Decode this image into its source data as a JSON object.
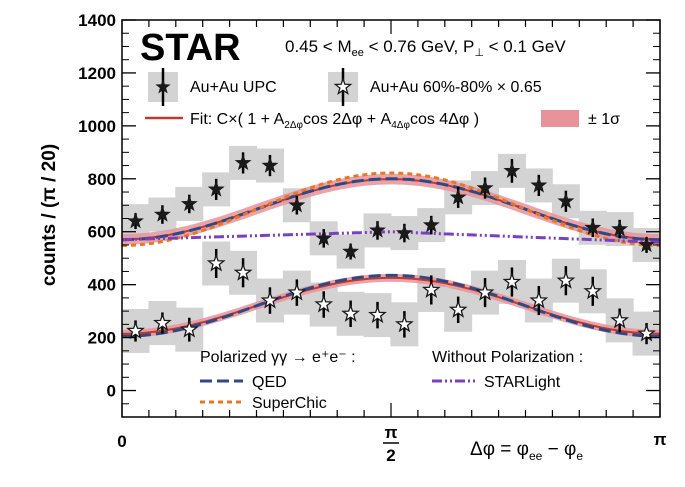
{
  "colors": {
    "star_fill": "#1a1a1a",
    "box_fill": "#d3d3d3",
    "fit_line": "#c0392b",
    "fit_band": "#e8939a",
    "qed": "#2e4a86",
    "superchic": "#e87722",
    "starlight": "#7b3fbf"
  },
  "chart_data": {
    "type": "scatter",
    "logo": "STAR",
    "condition_text": "0.45 < M_ee < 0.76 GeV, P_⊥ < 0.1 GeV",
    "ylabel": "counts  / (π / 20)",
    "xlabel": "Δφ = φ_ee − φ_e",
    "xlim": [
      0,
      3.14159
    ],
    "ylim": [
      -100,
      1400
    ],
    "yticks": [
      0,
      200,
      400,
      600,
      800,
      1000,
      1200,
      1400
    ],
    "xtick_labels": [
      "0",
      "π/2",
      "π"
    ],
    "legend": {
      "upc": "Au+Au UPC",
      "peripheral": "Au+Au 60%-80% × 0.65",
      "fit": "Fit: C×( 1 + A_2Δφ cos 2Δφ + A_4Δφ cos 4Δφ )",
      "band": "± 1σ",
      "group_pol": "Polarized γγ → e⁺e⁻ :",
      "group_nopol": "Without Polarization :",
      "qed": "QED",
      "superchic": "SuperChic",
      "starlight": "STARLight"
    },
    "series": [
      {
        "name": "Au+Au UPC",
        "x": [
          0.079,
          0.236,
          0.393,
          0.55,
          0.707,
          0.864,
          1.021,
          1.178,
          1.335,
          1.492,
          1.649,
          1.806,
          1.963,
          2.12,
          2.277,
          2.434,
          2.592,
          2.749,
          2.906,
          3.063
        ],
        "y": [
          640,
          665,
          705,
          760,
          860,
          850,
          700,
          575,
          525,
          605,
          595,
          625,
          730,
          765,
          830,
          775,
          715,
          615,
          610,
          550
        ],
        "yerr": [
          30,
          35,
          35,
          40,
          40,
          40,
          35,
          35,
          30,
          35,
          35,
          35,
          40,
          40,
          45,
          40,
          40,
          35,
          35,
          30
        ]
      },
      {
        "name": "Au+Au 60%-80% × 0.65",
        "x": [
          0.079,
          0.236,
          0.393,
          0.55,
          0.707,
          0.864,
          1.021,
          1.178,
          1.335,
          1.492,
          1.649,
          1.806,
          1.963,
          2.12,
          2.277,
          2.434,
          2.592,
          2.749,
          2.906,
          3.063
        ],
        "y": [
          225,
          255,
          230,
          480,
          445,
          340,
          370,
          325,
          290,
          285,
          250,
          380,
          305,
          370,
          410,
          340,
          415,
          375,
          265,
          215
        ],
        "yerr": [
          40,
          40,
          45,
          55,
          55,
          50,
          50,
          50,
          50,
          50,
          50,
          55,
          50,
          55,
          55,
          55,
          55,
          55,
          45,
          40
        ]
      }
    ],
    "curves": [
      {
        "name": "Fit",
        "C": 685,
        "A2": -0.166,
        "A4": 0.0,
        "band": 20
      },
      {
        "name": "Fit",
        "C": 320,
        "A2": -0.33,
        "A4": 0.0,
        "band": 15
      },
      {
        "name": "QED",
        "C": 685,
        "A2": -0.168,
        "A4": 0.0
      },
      {
        "name": "QED",
        "C": 320,
        "A2": -0.36,
        "A4": 0.0
      },
      {
        "name": "SuperChic",
        "C": 685,
        "A2": -0.2,
        "A4": 0.0
      },
      {
        "name": "STARLight",
        "C": 600,
        "A2": 0.0,
        "A4": 0.0,
        "linear": [
          570,
          600,
          560
        ]
      }
    ]
  }
}
